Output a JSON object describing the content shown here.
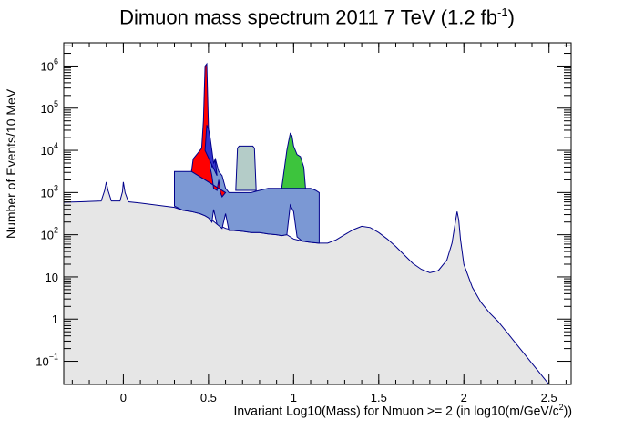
{
  "chart_data": {
    "type": "area",
    "title": "Dimuon mass spectrum 2011 7 TeV (1.2 fb",
    "title_sup": "-1",
    "title_end": ")",
    "ylabel": "Number of Events/10 MeV",
    "xlabel": "Invariant Log10(Mass) for Nmuon >= 2 (in log10(m/GeV/c",
    "xlabel_sup": "2",
    "xlabel_end": "))",
    "x_ticks": [
      {
        "v": 0,
        "label": "0"
      },
      {
        "v": 0.5,
        "label": "0.5"
      },
      {
        "v": 1,
        "label": "1"
      },
      {
        "v": 1.5,
        "label": "1.5"
      },
      {
        "v": 2,
        "label": "2"
      },
      {
        "v": 2.5,
        "label": "2.5"
      }
    ],
    "y_ticks": [
      {
        "v": -1,
        "base": "10",
        "exp": "−1"
      },
      {
        "v": 0,
        "base": "1",
        "exp": ""
      },
      {
        "v": 1,
        "base": "10",
        "exp": ""
      },
      {
        "v": 2,
        "base": "10",
        "exp": "2"
      },
      {
        "v": 3,
        "base": "10",
        "exp": "3"
      },
      {
        "v": 4,
        "base": "10",
        "exp": "4"
      },
      {
        "v": 5,
        "base": "10",
        "exp": "5"
      },
      {
        "v": 6,
        "base": "10",
        "exp": "6"
      }
    ],
    "xlim": [
      -0.35,
      2.63
    ],
    "ylim_log10": [
      -1.55,
      6.55
    ],
    "log_y": true,
    "series": [
      {
        "color": "#e6e6e6",
        "stroke": "#00008b",
        "points": [
          [
            -0.35,
            2.77
          ],
          [
            -0.25,
            2.78
          ],
          [
            -0.2,
            2.79
          ],
          [
            -0.13,
            2.8
          ],
          [
            -0.11,
            3.05
          ],
          [
            -0.1,
            3.25
          ],
          [
            -0.09,
            3.05
          ],
          [
            -0.07,
            2.8
          ],
          [
            -0.02,
            2.8
          ],
          [
            -0.005,
            3.02
          ],
          [
            0.0,
            3.25
          ],
          [
            0.01,
            3.0
          ],
          [
            0.03,
            2.78
          ],
          [
            0.1,
            2.75
          ],
          [
            0.2,
            2.7
          ],
          [
            0.3,
            2.65
          ],
          [
            0.35,
            2.58
          ],
          [
            0.4,
            2.55
          ],
          [
            0.45,
            2.5
          ],
          [
            0.48,
            2.45
          ],
          [
            0.5,
            2.4
          ],
          [
            0.52,
            2.35
          ],
          [
            0.55,
            2.25
          ],
          [
            0.6,
            2.15
          ],
          [
            0.65,
            2.1
          ],
          [
            0.7,
            2.08
          ],
          [
            0.75,
            2.05
          ],
          [
            0.8,
            2.05
          ],
          [
            0.85,
            2.02
          ],
          [
            0.9,
            2.0
          ],
          [
            0.93,
            1.98
          ],
          [
            0.96,
            2.0
          ],
          [
            1.0,
            1.9
          ],
          [
            1.05,
            1.85
          ],
          [
            1.1,
            1.82
          ],
          [
            1.15,
            1.8
          ],
          [
            1.2,
            1.8
          ],
          [
            1.25,
            1.88
          ],
          [
            1.3,
            2.0
          ],
          [
            1.35,
            2.12
          ],
          [
            1.4,
            2.2
          ],
          [
            1.45,
            2.17
          ],
          [
            1.5,
            2.05
          ],
          [
            1.55,
            1.9
          ],
          [
            1.6,
            1.72
          ],
          [
            1.65,
            1.52
          ],
          [
            1.7,
            1.32
          ],
          [
            1.75,
            1.18
          ],
          [
            1.8,
            1.1
          ],
          [
            1.85,
            1.15
          ],
          [
            1.9,
            1.4
          ],
          [
            1.93,
            1.8
          ],
          [
            1.95,
            2.3
          ],
          [
            1.96,
            2.55
          ],
          [
            1.97,
            2.35
          ],
          [
            1.98,
            1.9
          ],
          [
            2.0,
            1.3
          ],
          [
            2.05,
            0.75
          ],
          [
            2.1,
            0.4
          ],
          [
            2.15,
            0.15
          ],
          [
            2.2,
            -0.05
          ],
          [
            2.25,
            -0.3
          ],
          [
            2.3,
            -0.55
          ],
          [
            2.35,
            -0.8
          ],
          [
            2.4,
            -1.05
          ],
          [
            2.45,
            -1.3
          ],
          [
            2.48,
            -1.45
          ],
          [
            2.5,
            -1.55
          ]
        ]
      },
      {
        "color": "#7b98d4",
        "stroke": "#00008b",
        "points": [
          [
            0.3,
            2.68
          ],
          [
            0.3,
            3.5
          ],
          [
            0.4,
            3.5
          ],
          [
            0.45,
            3.55
          ],
          [
            0.48,
            4.2
          ],
          [
            0.49,
            3.9
          ],
          [
            0.5,
            4.5
          ],
          [
            0.51,
            4.1
          ],
          [
            0.52,
            3.6
          ],
          [
            0.54,
            3.8
          ],
          [
            0.56,
            3.5
          ],
          [
            0.58,
            3.4
          ],
          [
            0.6,
            3.1
          ],
          [
            0.62,
            3.0
          ],
          [
            0.65,
            3.0
          ],
          [
            0.7,
            3.0
          ],
          [
            0.75,
            3.0
          ],
          [
            0.8,
            3.05
          ],
          [
            0.85,
            3.1
          ],
          [
            0.9,
            3.1
          ],
          [
            0.95,
            3.1
          ],
          [
            1.0,
            3.1
          ],
          [
            1.05,
            3.1
          ],
          [
            1.1,
            3.1
          ],
          [
            1.13,
            3.05
          ],
          [
            1.15,
            3.0
          ],
          [
            1.15,
            1.8
          ],
          [
            1.1,
            1.82
          ],
          [
            1.05,
            1.85
          ],
          [
            1.02,
            1.95
          ],
          [
            1.0,
            2.55
          ],
          [
            0.98,
            2.7
          ],
          [
            0.96,
            2.0
          ],
          [
            0.93,
            1.98
          ],
          [
            0.9,
            2.0
          ],
          [
            0.85,
            2.02
          ],
          [
            0.8,
            2.05
          ],
          [
            0.75,
            2.05
          ],
          [
            0.7,
            2.08
          ],
          [
            0.65,
            2.1
          ],
          [
            0.62,
            2.1
          ],
          [
            0.6,
            2.5
          ],
          [
            0.58,
            2.15
          ],
          [
            0.55,
            2.25
          ],
          [
            0.53,
            2.6
          ],
          [
            0.52,
            2.3
          ],
          [
            0.5,
            2.4
          ],
          [
            0.48,
            2.45
          ],
          [
            0.45,
            2.5
          ],
          [
            0.4,
            2.55
          ],
          [
            0.35,
            2.58
          ]
        ]
      },
      {
        "color": "#b4ccc8",
        "stroke": "#00008b",
        "points": [
          [
            0.66,
            3.05
          ],
          [
            0.67,
            4.05
          ],
          [
            0.68,
            4.1
          ],
          [
            0.72,
            4.1
          ],
          [
            0.76,
            4.1
          ],
          [
            0.77,
            4.05
          ],
          [
            0.78,
            3.05
          ]
        ]
      },
      {
        "color": "#3dc43d",
        "stroke": "#00008b",
        "points": [
          [
            0.93,
            3.1
          ],
          [
            0.94,
            3.4
          ],
          [
            0.96,
            4.0
          ],
          [
            0.97,
            4.2
          ],
          [
            0.98,
            4.4
          ],
          [
            0.99,
            4.35
          ],
          [
            1.0,
            4.1
          ],
          [
            1.02,
            3.9
          ],
          [
            1.04,
            3.85
          ],
          [
            1.06,
            3.6
          ],
          [
            1.07,
            3.1
          ]
        ]
      },
      {
        "color": "#ff0000",
        "stroke": "#00008b",
        "points": [
          [
            0.4,
            3.5
          ],
          [
            0.41,
            3.8
          ],
          [
            0.44,
            3.95
          ],
          [
            0.46,
            4.05
          ],
          [
            0.47,
            4.7
          ],
          [
            0.48,
            6.0
          ],
          [
            0.49,
            6.05
          ],
          [
            0.5,
            4.5
          ],
          [
            0.51,
            3.6
          ],
          [
            0.52,
            3.4
          ],
          [
            0.53,
            3.1
          ],
          [
            0.55,
            3.05
          ],
          [
            0.56,
            3.3
          ],
          [
            0.57,
            3.0
          ],
          [
            0.58,
            2.9
          ],
          [
            0.6,
            3.0
          ]
        ]
      },
      {
        "color": "#3333cc",
        "stroke": "#00008b",
        "points": [
          [
            0.48,
            4.0
          ],
          [
            0.49,
            4.6
          ],
          [
            0.5,
            4.5
          ],
          [
            0.51,
            4.3
          ],
          [
            0.52,
            4.0
          ],
          [
            0.53,
            3.7
          ],
          [
            0.54,
            3.75
          ],
          [
            0.55,
            3.4
          ]
        ]
      }
    ]
  }
}
